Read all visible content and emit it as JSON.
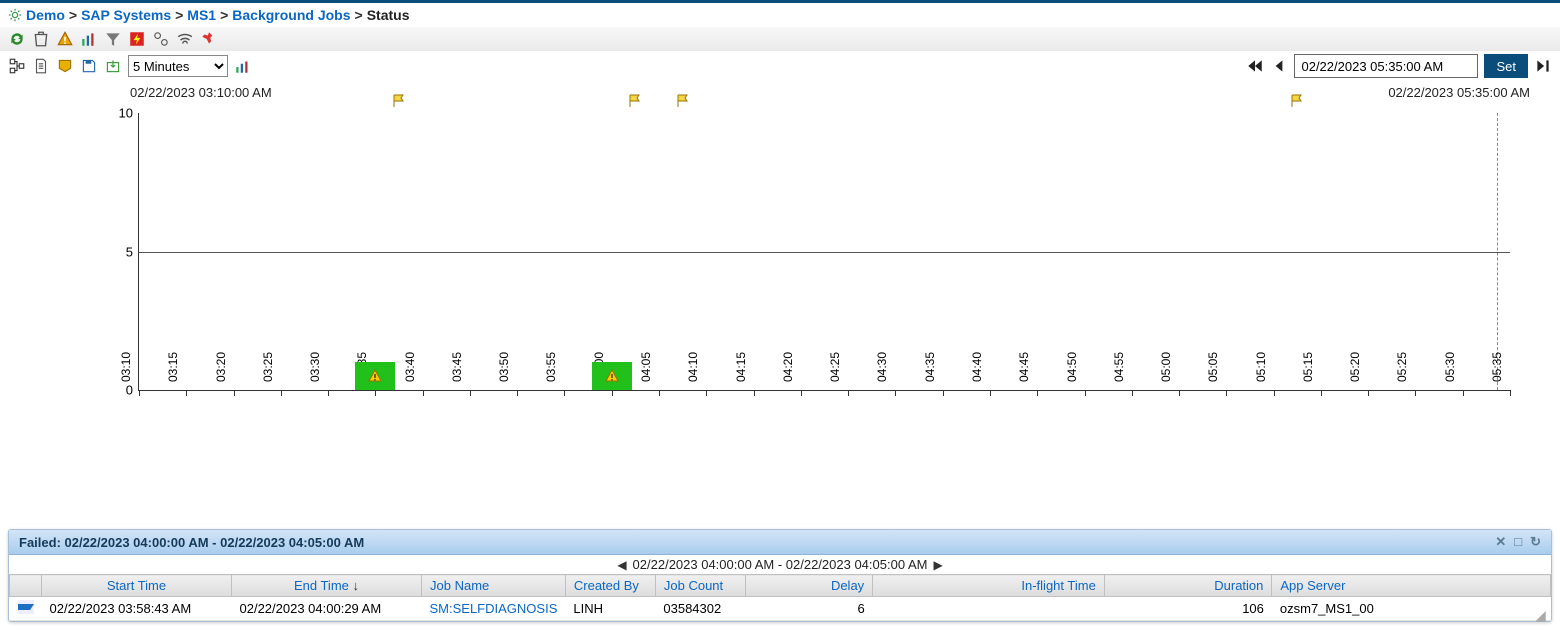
{
  "breadcrumb": {
    "items": [
      "Demo",
      "SAP Systems",
      "MS1",
      "Background Jobs"
    ],
    "current": "Status"
  },
  "interval": {
    "selected": "5 Minutes",
    "options": [
      "5 Minutes"
    ]
  },
  "timeControl": {
    "value": "02/22/2023 05:35:00 AM",
    "setLabel": "Set"
  },
  "chart": {
    "startLabel": "02/22/2023 03:10:00 AM",
    "endLabel": "02/22/2023 05:35:00 AM",
    "ylim": [
      0,
      10
    ],
    "yticks": [
      0,
      5,
      10
    ],
    "xticks": [
      "03:10",
      "03:15",
      "03:20",
      "03:25",
      "03:30",
      "03:35",
      "03:40",
      "03:45",
      "03:50",
      "03:55",
      "04:00",
      "04:05",
      "04:10",
      "04:15",
      "04:20",
      "04:25",
      "04:30",
      "04:35",
      "04:40",
      "04:45",
      "04:50",
      "04:55",
      "05:00",
      "05:05",
      "05:10",
      "05:15",
      "05:20",
      "05:25",
      "05:30",
      "05:35"
    ],
    "bars": [
      {
        "xIndex": 5,
        "value": 1,
        "color": "#22c01a",
        "warn": true
      },
      {
        "xIndex": 10,
        "value": 1,
        "color": "#22c01a",
        "warn": true
      }
    ],
    "flags": [
      {
        "xIndex": 5.5
      },
      {
        "xIndex": 10.5
      },
      {
        "xIndex": 11.5
      },
      {
        "xIndex": 24.5
      }
    ],
    "gridColor": "#555",
    "bgColor": "#ffffff"
  },
  "panel": {
    "title": "Failed: 02/22/2023 04:00:00 AM - 02/22/2023 04:05:00 AM",
    "rangeLabel": "02/22/2023 04:00:00 AM - 02/22/2023 04:05:00 AM",
    "columns": [
      "",
      "Start Time",
      "End Time",
      "Job Name",
      "Created By",
      "Job Count",
      "Delay",
      "In-flight Time",
      "Duration",
      "App Server"
    ],
    "sortColIndex": 2,
    "rows": [
      {
        "startTime": "02/22/2023 03:58:43 AM",
        "endTime": "02/22/2023 04:00:29 AM",
        "jobName": "SM:SELFDIAGNOSIS",
        "createdBy": "LINH",
        "jobCount": "03584302",
        "delay": "6",
        "inflight": "",
        "duration": "106",
        "appServer": "ozsm7_MS1_00"
      }
    ]
  }
}
